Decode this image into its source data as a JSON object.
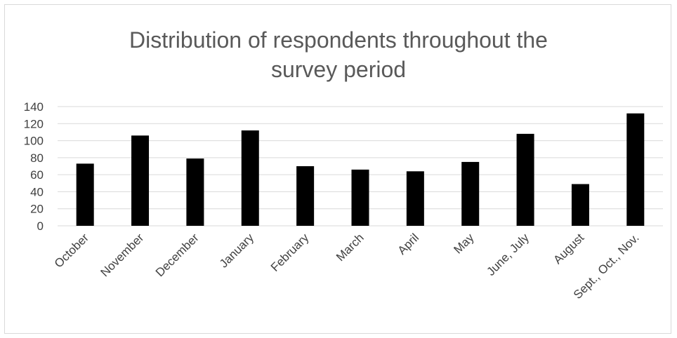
{
  "chart_data": {
    "type": "bar",
    "title_lines": [
      "Distribution of respondents throughout the",
      "survey period"
    ],
    "categories": [
      "October",
      "November",
      "December",
      "January",
      "February",
      "March",
      "April",
      "May",
      "June, July",
      "August",
      "Sept., Oct., Nov."
    ],
    "values": [
      73,
      106,
      79,
      112,
      70,
      66,
      64,
      75,
      108,
      49,
      132
    ],
    "ylim": [
      0,
      140
    ],
    "yticks": [
      0,
      20,
      40,
      60,
      80,
      100,
      120,
      140
    ],
    "grid": true,
    "bar_color": "#000000",
    "grid_color": "#d9d9d9"
  }
}
